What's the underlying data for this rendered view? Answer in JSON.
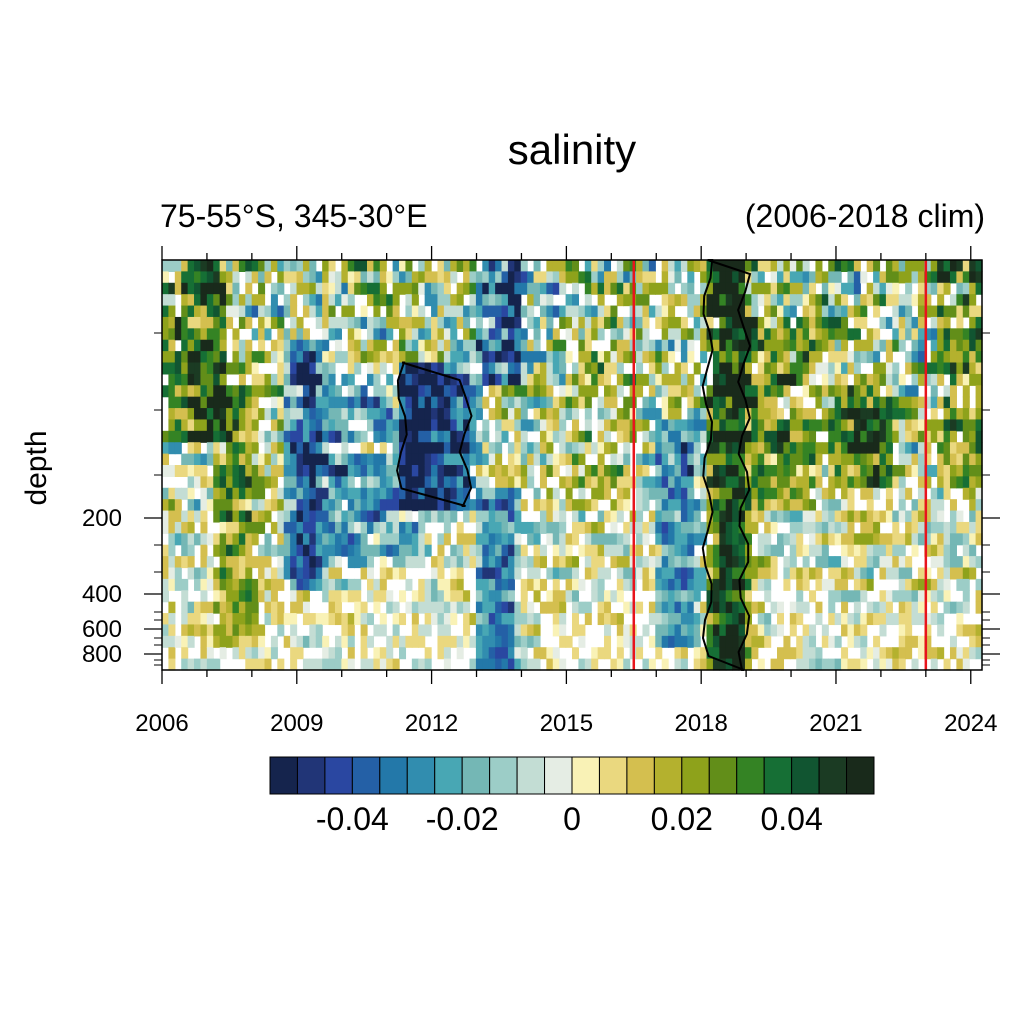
{
  "chart_data": {
    "type": "heatmap",
    "title": "salinity",
    "subtitle_left": "75-55°S, 345-30°E",
    "subtitle_right": "(2006-2018 clim)",
    "xlabel": "",
    "ylabel": "depth",
    "xlim": [
      2006,
      2024.25
    ],
    "x_ticks": [
      2006,
      2009,
      2012,
      2015,
      2018,
      2021,
      2024
    ],
    "x_tick_labels": [
      "2006",
      "2009",
      "2012",
      "2015",
      "2018",
      "2021",
      "2024"
    ],
    "y_ticks": [
      200,
      400,
      600,
      800
    ],
    "y_tick_labels": [
      "200",
      "400",
      "600",
      "800"
    ],
    "y_reversed": true,
    "vertical_lines": [
      2016.5,
      2023.0
    ],
    "vertical_line_color": "#e8141c",
    "colorbar": {
      "levels": [
        -0.05,
        -0.045,
        -0.04,
        -0.035,
        -0.03,
        -0.025,
        -0.02,
        -0.015,
        -0.01,
        -0.005,
        0,
        0.005,
        0.01,
        0.015,
        0.02,
        0.025,
        0.03,
        0.035,
        0.04,
        0.045,
        0.05
      ],
      "tick_values": [
        -0.04,
        -0.02,
        0,
        0.02,
        0.04
      ],
      "tick_labels": [
        "-0.04",
        "-0.02",
        "0",
        "0.02",
        "0.04"
      ],
      "colors": [
        "#15244d",
        "#213577",
        "#2a47a1",
        "#2460a6",
        "#2378a9",
        "#318daf",
        "#48a7b4",
        "#74b7b5",
        "#9ccdc7",
        "#c3ddd4",
        "#e5ede4",
        "#f9f2b6",
        "#ead87f",
        "#d4bf4f",
        "#b4b12e",
        "#8ea21b",
        "#628e19",
        "#348324",
        "#166f35",
        "#115531",
        "#1b3b23",
        "#192a1b"
      ]
    },
    "features": [
      {
        "start": 2006.0,
        "end": 2007.4,
        "depth": [
          0.0,
          0.45
        ],
        "value": 0.035
      },
      {
        "start": 2007.2,
        "end": 2008.0,
        "depth": [
          0.3,
          0.95
        ],
        "value": 0.025
      },
      {
        "start": 2008.7,
        "end": 2009.4,
        "depth": [
          0.2,
          0.8
        ],
        "value": -0.04
      },
      {
        "start": 2009.3,
        "end": 2011.7,
        "depth": [
          0.25,
          0.75
        ],
        "value": -0.02
      },
      {
        "start": 2011.3,
        "end": 2012.8,
        "depth": [
          0.25,
          0.6
        ],
        "value": -0.045
      },
      {
        "start": 2013.0,
        "end": 2013.9,
        "depth": [
          0.55,
          1.0
        ],
        "value": -0.035
      },
      {
        "start": 2013.0,
        "end": 2014.0,
        "depth": [
          0.0,
          0.3
        ],
        "value": -0.04
      },
      {
        "start": 2015.0,
        "end": 2016.4,
        "depth": [
          0.2,
          0.6
        ],
        "value": 0.012
      },
      {
        "start": 2017.0,
        "end": 2017.8,
        "depth": [
          0.4,
          0.95
        ],
        "value": -0.03
      },
      {
        "start": 2018.1,
        "end": 2019.0,
        "depth": [
          0.0,
          1.0
        ],
        "value": 0.05
      },
      {
        "start": 2019.0,
        "end": 2020.6,
        "depth": [
          0.15,
          0.6
        ],
        "value": 0.02
      },
      {
        "start": 2020.8,
        "end": 2022.3,
        "depth": [
          0.3,
          0.55
        ],
        "value": 0.035
      },
      {
        "start": 2023.2,
        "end": 2024.25,
        "depth": [
          0.0,
          0.55
        ],
        "value": 0.025
      }
    ],
    "contours_at": [
      0.05,
      -0.05
    ]
  }
}
